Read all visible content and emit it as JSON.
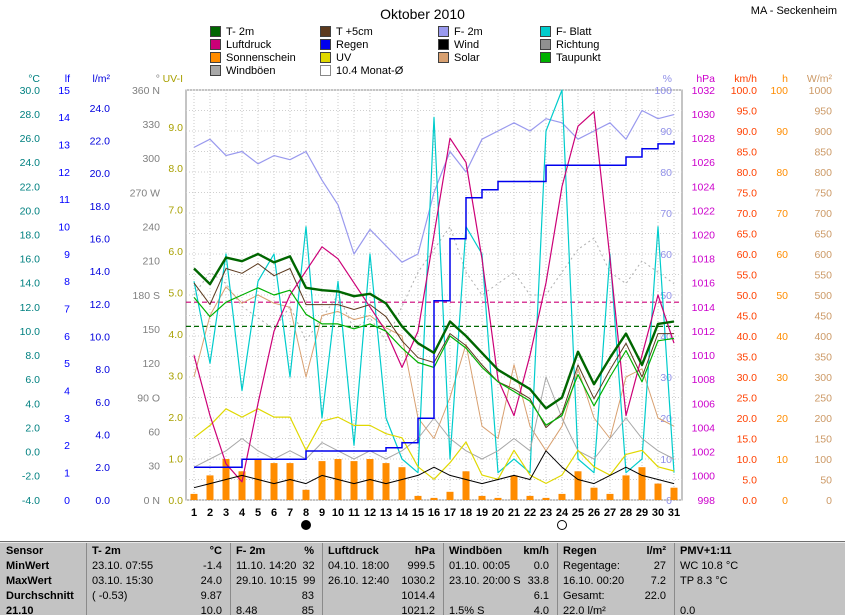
{
  "header": {
    "title": "Oktober 2010",
    "station": "MA - Seckenheim"
  },
  "legend": {
    "columns": [
      [
        {
          "label": "T- 2m",
          "color": "#006600"
        },
        {
          "label": "Luftdruck",
          "color": "#cc0077"
        },
        {
          "label": "Sonnenschein",
          "color": "#ff8c00"
        },
        {
          "label": "Windböen",
          "color": "#a8a8a8"
        }
      ],
      [
        {
          "label": "T +5cm",
          "color": "#5c3a1e"
        },
        {
          "label": "Regen",
          "color": "#0000ee"
        },
        {
          "label": "UV",
          "color": "#e0d800"
        },
        {
          "label": "10.4 Monat-Ø",
          "color": "#ffffff",
          "outline": true
        }
      ],
      [
        {
          "label": "F- 2m",
          "color": "#9999ee"
        },
        {
          "label": "Wind",
          "color": "#000000"
        },
        {
          "label": "Solar",
          "color": "#d8a070"
        }
      ],
      [
        {
          "label": "F- Blatt",
          "color": "#00cccc"
        },
        {
          "label": "Richtung",
          "color": "#909090"
        },
        {
          "label": "Taupunkt",
          "color": "#00b000"
        }
      ]
    ]
  },
  "axes": {
    "left": [
      {
        "key": "temp",
        "unit": "°C",
        "color": "#008080",
        "min": -4,
        "max": 30,
        "step": 2,
        "decimals": 1
      },
      {
        "key": "lf",
        "unit": "lf",
        "color": "#0000ff",
        "min": 0,
        "max": 15,
        "step": 1,
        "decimals": 0
      },
      {
        "key": "lm2",
        "unit": "l/m²",
        "color": "#0000dd",
        "min": 0,
        "max": 24,
        "step": 2,
        "decimals": 1
      },
      {
        "key": "dir",
        "unit": "°",
        "color": "#808080",
        "min": 0,
        "max": 360,
        "step": 30,
        "decimals": 0,
        "labels": {
          "360": "360 N",
          "270": "270 W",
          "180": "180 S",
          "90": "90 O",
          "0": "0 N"
        }
      },
      {
        "key": "uvi",
        "unit": "UV-I",
        "color": "#a8a000",
        "min": 0,
        "max": 9,
        "step": 1,
        "decimals": 1
      }
    ],
    "right": [
      {
        "key": "pct",
        "unit": "%",
        "color": "#9090e8",
        "min": 0,
        "max": 100,
        "step": 10,
        "decimals": 0
      },
      {
        "key": "hpa",
        "unit": "hPa",
        "color": "#cc00cc",
        "min": 998,
        "max": 1032,
        "step": 2,
        "decimals": 0
      },
      {
        "key": "kmh",
        "unit": "km/h",
        "color": "#ff4000",
        "min": 0,
        "max": 100,
        "step": 5,
        "decimals": 1
      },
      {
        "key": "h",
        "unit": "h",
        "color": "#ff8c00",
        "min": 0,
        "max": 100,
        "step": 10,
        "decimals": 0
      },
      {
        "key": "wm2",
        "unit": "W/m²",
        "color": "#cc9966",
        "min": 0,
        "max": 1000,
        "step": 50,
        "decimals": 0
      }
    ]
  },
  "chart_data": {
    "type": "line",
    "title": "Oktober 2010",
    "x_axis": {
      "days": [
        1,
        2,
        3,
        4,
        5,
        6,
        7,
        8,
        9,
        10,
        11,
        12,
        13,
        14,
        15,
        16,
        17,
        18,
        19,
        20,
        21,
        22,
        23,
        24,
        25,
        26,
        27,
        28,
        29,
        30,
        31
      ],
      "moons": [
        {
          "day": 8,
          "symbol": "filled",
          "name": "new-moon"
        },
        {
          "day": 24,
          "symbol": "open",
          "name": "full-moon"
        }
      ]
    },
    "series": [
      {
        "name": "Richtung",
        "axis": "dir",
        "color": "#b0b0b0",
        "width": 1,
        "dash": "2,3",
        "values": [
          180,
          200,
          190,
          170,
          160,
          150,
          170,
          140,
          160,
          180,
          150,
          160,
          140,
          170,
          200,
          220,
          240,
          200,
          180,
          190,
          200,
          180,
          180,
          200,
          220,
          230,
          200,
          190,
          210,
          200,
          190
        ]
      },
      {
        "name": "Solar",
        "axis": "wm2",
        "color": "#d8a070",
        "width": 1,
        "values": [
          300,
          450,
          520,
          480,
          500,
          480,
          470,
          300,
          450,
          460,
          440,
          450,
          420,
          400,
          200,
          150,
          250,
          380,
          180,
          150,
          330,
          180,
          120,
          180,
          320,
          200,
          150,
          300,
          320,
          200,
          180
        ]
      },
      {
        "name": "F- 2m",
        "axis": "pct",
        "color": "#9999ee",
        "width": 1.2,
        "values": [
          86,
          88,
          84,
          85,
          82,
          84,
          83,
          85,
          78,
          72,
          60,
          66,
          62,
          58,
          60,
          75,
          85,
          80,
          88,
          90,
          92,
          90,
          93,
          92,
          88,
          90,
          92,
          88,
          95,
          93,
          94
        ]
      },
      {
        "name": "F- Blatt",
        "axis": "lf",
        "color": "#00cccc",
        "width": 1.2,
        "values": [
          8,
          5,
          9,
          4,
          8,
          9,
          4.5,
          10,
          3,
          8,
          2,
          9,
          3,
          1.5,
          1,
          14,
          1.5,
          10,
          9,
          1,
          1.5,
          1,
          13.5,
          15,
          1.5,
          1,
          9,
          1,
          1.5,
          10,
          1
        ]
      },
      {
        "name": "Windböen",
        "axis": "kmh",
        "color": "#a8a8a8",
        "width": 1,
        "values": [
          8,
          10,
          12,
          15,
          12,
          10,
          12,
          10,
          14,
          12,
          10,
          12,
          10,
          12,
          15,
          20,
          15,
          12,
          10,
          12,
          15,
          12,
          30,
          20,
          12,
          10,
          15,
          20,
          15,
          12,
          10
        ]
      },
      {
        "name": "UV",
        "axis": "uvi",
        "color": "#e0d800",
        "width": 1.2,
        "values": [
          1.5,
          1.8,
          2.2,
          2.0,
          2.2,
          2.0,
          2.0,
          1.2,
          1.9,
          2.0,
          1.8,
          1.8,
          1.6,
          1.5,
          0.8,
          0.5,
          0.9,
          1.4,
          0.6,
          0.5,
          1.2,
          0.6,
          0.4,
          0.6,
          1.2,
          0.8,
          0.6,
          1.1,
          1.2,
          0.8,
          0.7
        ]
      },
      {
        "name": "T +5cm",
        "axis": "temp",
        "color": "#5c3a1e",
        "width": 1,
        "values": [
          14.0,
          12.2,
          15.2,
          14.8,
          15.6,
          14.6,
          15.2,
          12.2,
          12.2,
          12.2,
          11.8,
          12.2,
          11.2,
          9.2,
          7.8,
          7.4,
          9.8,
          8.8,
          7.2,
          5.8,
          5.2,
          4.4,
          2.0,
          3.2,
          7.2,
          4.4,
          6.8,
          9.0,
          6.2,
          9.8,
          9.8
        ]
      },
      {
        "name": "Luftdruck",
        "axis": "hpa",
        "color": "#cc0077",
        "width": 1.2,
        "values": [
          1010,
          1005,
          1001,
          999.5,
          1006,
          1012,
          1015,
          1017,
          1019,
          1018,
          1016,
          1014,
          1012,
          1009,
          1012,
          1020,
          1028,
          1026,
          1018,
          1008,
          1005,
          1010,
          1016,
          1024,
          1029,
          1030.2,
          1018,
          1005,
          1010,
          1015,
          1011
        ]
      },
      {
        "name": "Taupunkt",
        "axis": "temp",
        "color": "#00b000",
        "width": 1.2,
        "values": [
          12.8,
          11.2,
          12.4,
          13.0,
          13.6,
          13.0,
          13.4,
          11.4,
          10.6,
          10.6,
          10.2,
          10.6,
          10.0,
          8.6,
          7.4,
          7.0,
          9.6,
          8.6,
          7.0,
          5.8,
          5.0,
          4.2,
          2.2,
          3.0,
          6.4,
          3.8,
          6.2,
          8.4,
          5.8,
          9.2,
          9.4
        ]
      },
      {
        "name": "Wind",
        "axis": "kmh",
        "color": "#000000",
        "width": 1,
        "values": [
          3,
          4,
          5,
          6,
          5,
          4,
          5,
          4,
          6,
          5,
          4,
          5,
          4,
          5,
          6,
          8,
          6,
          5,
          4,
          5,
          6,
          5,
          12,
          8,
          5,
          4,
          6,
          8,
          6,
          5,
          4
        ]
      },
      {
        "name": "Regen",
        "axis": "lm2",
        "color": "#0000ee",
        "width": 1.5,
        "style": "step",
        "values": [
          2,
          2,
          2,
          2.5,
          2.5,
          2.5,
          2.5,
          3,
          3,
          3,
          3,
          3,
          3.2,
          3.5,
          5,
          12.2,
          16,
          18.5,
          19,
          19.5,
          19.5,
          19.5,
          20.5,
          20.5,
          20.5,
          20.5,
          20.5,
          21,
          21.5,
          21.8,
          22
        ]
      },
      {
        "name": "T- 2m",
        "axis": "temp",
        "color": "#006600",
        "width": 2.4,
        "values": [
          15.2,
          13.9,
          16.1,
          15.8,
          16.4,
          15.7,
          16.2,
          13.6,
          13.4,
          13.3,
          12.9,
          13.1,
          12.3,
          10.4,
          9.0,
          8.2,
          10.8,
          9.6,
          8.2,
          6.8,
          6.0,
          5.2,
          3.6,
          4.5,
          8.3,
          5.6,
          7.8,
          9.8,
          7.2,
          10.6,
          10.8
        ]
      }
    ],
    "bars": {
      "name": "Sonnenschein",
      "axis": "h",
      "color": "#ff8c00",
      "values": [
        1.5,
        6,
        10,
        7,
        10,
        9,
        9,
        2.5,
        9.5,
        10,
        9.5,
        10,
        9,
        8,
        1,
        0.5,
        2,
        7,
        1,
        0.5,
        6,
        1,
        0.5,
        1.5,
        7,
        3,
        1.5,
        6,
        8,
        4,
        3
      ]
    },
    "avg_lines": [
      {
        "label": "10.4 Monat-Ø",
        "axis": "temp",
        "value": 10.4,
        "color": "#006600"
      },
      {
        "label": "",
        "axis": "hpa",
        "value": 1014.4,
        "color": "#cc0077"
      }
    ]
  },
  "table": {
    "col0_header": "Sensor",
    "row_labels": [
      "MinWert",
      "MaxWert",
      "Durchschnitt",
      "21.10"
    ],
    "groups": [
      {
        "header": "T- 2m",
        "unit": "°C",
        "rows": [
          [
            "23.10.  07:55",
            "-1.4"
          ],
          [
            "03.10.  15:30",
            "24.0"
          ],
          [
            "( -0.53)",
            "9.87"
          ],
          [
            "",
            "10.0"
          ]
        ]
      },
      {
        "header": "F- 2m",
        "unit": "%",
        "rows": [
          [
            "11.10.  14:20",
            "32"
          ],
          [
            "29.10.  10:15",
            "99"
          ],
          [
            "",
            "83"
          ],
          [
            "8.48",
            "85"
          ]
        ]
      },
      {
        "header": "Luftdruck",
        "unit": "hPa",
        "rows": [
          [
            "04.10.  18:00",
            "999.5"
          ],
          [
            "26.10.  12:40",
            "1030.2"
          ],
          [
            "",
            "1014.4"
          ],
          [
            "",
            "1021.2"
          ]
        ]
      },
      {
        "header": "Windböen",
        "unit": "km/h",
        "rows": [
          [
            "01.10.  00:05",
            "0.0"
          ],
          [
            "23.10.  20:00 S",
            "33.8"
          ],
          [
            "",
            "6.1"
          ],
          [
            "1.5% S",
            "4.0"
          ]
        ]
      },
      {
        "header": "Regen",
        "unit": "l/m²",
        "rows": [
          [
            "Regentage:",
            "27"
          ],
          [
            "16.10.  00:20",
            "7.2"
          ],
          [
            "Gesamt:",
            "22.0"
          ],
          [
            "22.0 l/m²",
            ""
          ]
        ]
      },
      {
        "header": "PMV+1:11",
        "unit": "",
        "rows": [
          [
            "WC 10.8 °C",
            ""
          ],
          [
            "TP 8.3 °C",
            ""
          ],
          [
            "",
            ""
          ],
          [
            "0.0",
            ""
          ]
        ]
      }
    ]
  }
}
